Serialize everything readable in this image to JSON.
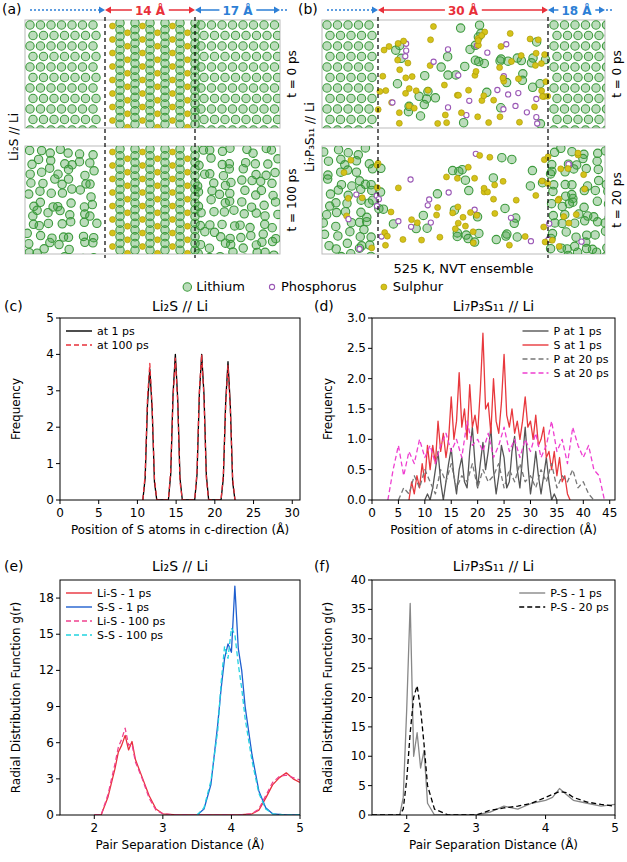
{
  "snapshots": [
    {
      "panel": "(a)",
      "system": "Li₂S // Li",
      "width_center": "14 Å",
      "width_side": "17 Å",
      "frames": [
        "t = 0 ps",
        "t = 100 ps"
      ]
    },
    {
      "panel": "(b)",
      "system": "Li₇P₃S₁₁ // Li",
      "width_center": "30 Å",
      "width_side": "18 Å",
      "frames": [
        "t = 0 ps",
        "t = 20 ps"
      ],
      "conditions": "525 K, NVT ensemble"
    }
  ],
  "species": [
    {
      "name": "Lithium",
      "color": "#3c9a3c"
    },
    {
      "name": "Phosphorus",
      "color": "#9b59b6"
    },
    {
      "name": "Sulphur",
      "color": "#d4c21a"
    }
  ],
  "chart_data": [
    {
      "type": "line",
      "panel": "(c)",
      "title": "Li₂S // Li",
      "xlabel": "Position of S atoms in c-direction (Å)",
      "ylabel": "Frequency",
      "xlim": [
        0,
        31
      ],
      "ylim": [
        0,
        5
      ],
      "xticks": [
        0,
        5,
        10,
        15,
        20,
        25,
        30
      ],
      "yticks": [
        0,
        1,
        2,
        3,
        4,
        5
      ],
      "legend": "upper left",
      "series": [
        {
          "name": "at 1 ps",
          "color": "#000000",
          "line_style": "solid",
          "x": [
            10.7,
            11.0,
            11.3,
            11.6,
            11.9,
            12.2,
            12.5,
            14.0,
            14.3,
            14.6,
            14.9,
            15.2,
            15.5,
            15.8,
            17.4,
            17.7,
            18.0,
            18.3,
            18.6,
            18.9,
            19.2,
            20.8,
            21.1,
            21.4,
            21.7,
            22.0,
            22.3,
            22.6
          ],
          "values": [
            0,
            0.6,
            2.6,
            3.6,
            2.5,
            0.5,
            0,
            0,
            0.7,
            2.9,
            4.0,
            2.8,
            0.6,
            0,
            0,
            0.7,
            2.9,
            4.0,
            2.9,
            0.7,
            0,
            0,
            0.6,
            2.7,
            3.8,
            2.6,
            0.5,
            0
          ]
        },
        {
          "name": "at 100 ps",
          "color": "#e8303a",
          "line_style": "dashed",
          "x": [
            10.7,
            11.0,
            11.3,
            11.6,
            11.9,
            12.2,
            12.5,
            14.0,
            14.3,
            14.6,
            14.9,
            15.2,
            15.5,
            15.8,
            17.4,
            17.7,
            18.0,
            18.3,
            18.6,
            18.9,
            19.2,
            20.8,
            21.1,
            21.4,
            21.7,
            22.0,
            22.3,
            22.6
          ],
          "values": [
            0,
            0.7,
            2.8,
            3.75,
            2.6,
            0.6,
            0,
            0,
            0.8,
            2.8,
            3.9,
            2.7,
            0.5,
            0,
            0,
            0.8,
            3.0,
            4.0,
            2.8,
            0.6,
            0,
            0,
            0.7,
            2.6,
            3.7,
            2.5,
            0.6,
            0
          ]
        }
      ]
    },
    {
      "type": "line",
      "panel": "(d)",
      "title": "Li₇P₃S₁₁ // Li",
      "xlabel": "Position of atoms in c-direction (Å)",
      "ylabel": "Frequency",
      "xlim": [
        0,
        46
      ],
      "ylim": [
        0,
        3
      ],
      "xticks": [
        0,
        5,
        10,
        15,
        20,
        25,
        30,
        35,
        40,
        45
      ],
      "yticks": [
        {
          "value": 0,
          "label": "0.0"
        },
        0.5,
        {
          "value": 1,
          "label": "1.0"
        },
        1.5,
        {
          "value": 2,
          "label": "2.0"
        },
        2.5,
        {
          "value": 3,
          "label": "3.0"
        }
      ],
      "legend": "upper right",
      "series": [
        {
          "name": "P at 1 ps",
          "color": "#555555",
          "line_style": "solid",
          "x": [
            10.0,
            10.5,
            11.0,
            11.5,
            12.0,
            12.5,
            13.0,
            13.5,
            14.0,
            14.5,
            15.0,
            15.5,
            16.0,
            16.5,
            17.0,
            17.5,
            18.0,
            18.5,
            19.0,
            19.5,
            20.0,
            20.5,
            21.0,
            21.5,
            22.0,
            22.5,
            23.0,
            23.5,
            24.0,
            24.5,
            25.0,
            25.5,
            26.0,
            26.5,
            27.0,
            27.5,
            28.0,
            28.5,
            29.0,
            29.5,
            30.0,
            30.5,
            31.0,
            31.5,
            32.0,
            32.5,
            33.0,
            33.5,
            34.0,
            34.5,
            35.0
          ],
          "values": [
            0,
            0.1,
            0,
            0.2,
            0.5,
            0.8,
            0.3,
            0,
            0.3,
            0.6,
            0.85,
            0.4,
            0.1,
            0.5,
            0.7,
            0.3,
            0.2,
            0.8,
            1.2,
            0.6,
            0.2,
            0.6,
            0.95,
            0.5,
            0.8,
            1.2,
            0.5,
            0.1,
            0.4,
            0.9,
            0.7,
            0.2,
            0.3,
            0.8,
            1.05,
            0.5,
            0.2,
            0.7,
            1.2,
            0.6,
            0.1,
            0.4,
            0.8,
            0.4,
            0.1,
            0.4,
            0.7,
            0.3,
            0,
            0.1,
            0
          ]
        },
        {
          "name": "S at 1 ps",
          "color": "#e8383d",
          "line_style": "solid",
          "x": [
            7.0,
            7.5,
            8.0,
            8.5,
            9.0,
            9.5,
            10.0,
            10.5,
            11.0,
            11.5,
            12.0,
            12.5,
            13.0,
            13.5,
            14.0,
            14.5,
            15.0,
            15.5,
            16.0,
            16.5,
            17.0,
            17.5,
            18.0,
            18.5,
            19.0,
            19.5,
            20.0,
            20.5,
            21.0,
            21.5,
            22.0,
            22.5,
            23.0,
            23.5,
            24.0,
            24.5,
            25.0,
            25.5,
            26.0,
            26.5,
            27.0,
            27.5,
            28.0,
            28.5,
            29.0,
            29.5,
            30.0,
            30.5,
            31.0,
            31.5,
            32.0,
            32.5,
            33.0,
            33.5,
            34.0,
            34.5,
            35.0,
            35.5,
            36.0,
            36.5,
            37.0,
            37.5
          ],
          "values": [
            0,
            0.3,
            0.1,
            0.4,
            0.2,
            0.6,
            0.3,
            0.9,
            0.5,
            0.9,
            0.6,
            1.3,
            0.8,
            1.1,
            0.7,
            1.0,
            1.7,
            1.0,
            1.3,
            2.1,
            1.2,
            1.5,
            1.0,
            1.9,
            1.2,
            1.4,
            1.1,
            1.8,
            2.75,
            1.5,
            1.6,
            1.1,
            2.0,
            1.3,
            1.1,
            1.6,
            2.4,
            1.4,
            1.2,
            1.5,
            1.1,
            1.3,
            1.0,
            1.3,
            1.7,
            1.2,
            1.3,
            1.0,
            1.4,
            0.9,
            1.0,
            1.2,
            0.7,
            0.8,
            0.5,
            0.8,
            0.4,
            0.7,
            0.3,
            0.4,
            0.1,
            0
          ]
        },
        {
          "name": "P at 20 ps",
          "color": "#777777",
          "line_style": "dashed",
          "x": [
            5,
            6,
            7,
            8,
            9,
            10,
            11,
            12,
            13,
            14,
            15,
            16,
            17,
            18,
            19,
            20,
            21,
            22,
            23,
            24,
            25,
            26,
            27,
            28,
            29,
            30,
            31,
            32,
            33,
            34,
            35,
            36,
            37,
            38,
            39,
            40,
            41,
            42
          ],
          "values": [
            0,
            0.2,
            0.1,
            0.4,
            0.2,
            0.5,
            0.3,
            0.1,
            0.5,
            0.3,
            0.6,
            0.2,
            0.4,
            0.3,
            0.6,
            0.2,
            0.5,
            0.3,
            0.4,
            0.6,
            0.2,
            0.5,
            0.3,
            0.6,
            0.3,
            0.4,
            0.2,
            0.5,
            0.3,
            0.6,
            0.2,
            0.4,
            0.3,
            0.5,
            0.2,
            0.3,
            0.1,
            0
          ]
        },
        {
          "name": "S at 20 ps",
          "color": "#ee3fd0",
          "line_style": "dashed",
          "x": [
            3,
            4,
            5,
            6,
            7,
            8,
            9,
            10,
            11,
            12,
            13,
            14,
            15,
            16,
            17,
            18,
            19,
            20,
            21,
            22,
            23,
            24,
            25,
            26,
            27,
            28,
            29,
            30,
            31,
            32,
            33,
            34,
            35,
            36,
            37,
            38,
            39,
            40,
            41,
            42,
            43,
            44
          ],
          "values": [
            0,
            0.5,
            0.9,
            0.4,
            0.8,
            0.6,
            1.0,
            0.7,
            0.9,
            0.6,
            0.9,
            1.1,
            0.8,
            1.0,
            0.7,
            1.3,
            0.9,
            1.0,
            0.8,
            1.1,
            0.7,
            0.9,
            1.2,
            0.8,
            1.0,
            0.7,
            1.0,
            0.8,
            1.1,
            0.7,
            0.9,
            1.3,
            0.8,
            1.0,
            0.6,
            1.2,
            0.9,
            0.7,
            0.9,
            0.5,
            0.4,
            0
          ]
        }
      ]
    },
    {
      "type": "line",
      "panel": "(e)",
      "title": "Li₂S // Li",
      "xlabel": "Pair Separation Distance (Å)",
      "ylabel": "Radial Distribution Function g(r)",
      "xlim": [
        1.5,
        5
      ],
      "ylim": [
        0,
        19.5
      ],
      "xticks": [
        2,
        3,
        4,
        5
      ],
      "yticks": [
        0,
        3,
        6,
        9,
        12,
        15,
        18
      ],
      "legend": "upper left",
      "series": [
        {
          "name": "Li-S - 1 ps",
          "color": "#e8303a",
          "line_style": "solid",
          "x": [
            2.0,
            2.1,
            2.2,
            2.3,
            2.35,
            2.4,
            2.45,
            2.5,
            2.55,
            2.6,
            2.7,
            2.8,
            2.9,
            3.0,
            3.2,
            3.5,
            3.8,
            4.1,
            4.3,
            4.4,
            4.5,
            4.6,
            4.7,
            4.8,
            4.9,
            5.0
          ],
          "values": [
            0,
            0,
            1.5,
            3.8,
            5.2,
            5.8,
            6.6,
            5.4,
            6.1,
            4.6,
            3.1,
            1.6,
            0.5,
            0.1,
            0,
            0,
            0,
            0,
            0.1,
            0.4,
            1.4,
            2.5,
            3.1,
            3.5,
            3.0,
            2.7
          ]
        },
        {
          "name": "S-S - 1 ps",
          "color": "#1f5fcf",
          "line_style": "solid",
          "x": [
            3.5,
            3.6,
            3.7,
            3.8,
            3.85,
            3.9,
            3.95,
            4.0,
            4.05,
            4.1,
            4.15,
            4.2,
            4.3,
            4.4,
            4.5,
            4.6,
            4.8,
            5.0
          ],
          "values": [
            0,
            0.5,
            2.5,
            7.5,
            10.5,
            13.0,
            14.2,
            13.5,
            19.0,
            13.8,
            12.0,
            9.0,
            5.0,
            2.0,
            0.6,
            0.1,
            0,
            0
          ]
        },
        {
          "name": "Li-S - 100 ps",
          "color": "#f0418f",
          "line_style": "dashed",
          "x": [
            2.0,
            2.1,
            2.2,
            2.3,
            2.35,
            2.4,
            2.45,
            2.5,
            2.55,
            2.6,
            2.7,
            2.8,
            2.9,
            3.0,
            3.2,
            3.5,
            3.8,
            4.1,
            4.3,
            4.4,
            4.5,
            4.6,
            4.7,
            4.8,
            4.9,
            5.0
          ],
          "values": [
            0,
            0,
            1.7,
            4.2,
            5.6,
            6.3,
            7.2,
            5.8,
            5.9,
            4.4,
            3.0,
            1.4,
            0.4,
            0.1,
            0,
            0,
            0,
            0,
            0.1,
            0.5,
            1.6,
            2.7,
            3.2,
            3.3,
            3.1,
            2.9
          ]
        },
        {
          "name": "S-S - 100 ps",
          "color": "#22d3e0",
          "line_style": "dashed",
          "x": [
            3.5,
            3.6,
            3.7,
            3.8,
            3.85,
            3.9,
            3.95,
            4.0,
            4.05,
            4.1,
            4.15,
            4.2,
            4.3,
            4.4,
            4.5,
            4.6,
            4.8,
            5.0
          ],
          "values": [
            0,
            0.6,
            2.8,
            7.0,
            11.0,
            14.0,
            13.0,
            15.5,
            15.0,
            12.5,
            10.5,
            8.0,
            4.5,
            1.8,
            0.5,
            0.1,
            0,
            0
          ]
        }
      ]
    },
    {
      "type": "line",
      "panel": "(f)",
      "title": "Li₇P₃S₁₁ // Li",
      "xlabel": "Pair Separation Distance (Å)",
      "ylabel": "Radial Distribution Function g(r)",
      "xlim": [
        1.5,
        5
      ],
      "ylim": [
        0,
        40
      ],
      "xticks": [
        2,
        3,
        4,
        5
      ],
      "yticks": [
        0,
        5,
        10,
        15,
        20,
        25,
        30,
        35,
        40
      ],
      "legend": "upper right",
      "series": [
        {
          "name": "P-S - 1 ps",
          "color": "#888888",
          "line_style": "solid",
          "x": [
            1.5,
            1.9,
            1.95,
            2.0,
            2.05,
            2.1,
            2.15,
            2.2,
            2.25,
            2.3,
            2.4,
            2.6,
            3.0,
            3.2,
            3.4,
            3.6,
            3.8,
            4.0,
            4.1,
            4.2,
            4.3,
            4.4,
            4.6,
            4.8,
            5.0
          ],
          "values": [
            0,
            0,
            3,
            18,
            36,
            10,
            14,
            8,
            11,
            2,
            0,
            0,
            0,
            0.5,
            1.5,
            1.0,
            2.0,
            2.5,
            3.0,
            4.5,
            3.5,
            2.5,
            2.0,
            1.5,
            1.8
          ]
        },
        {
          "name": "P-S - 20 ps",
          "color": "#000000",
          "line_style": "dashed",
          "x": [
            1.5,
            1.9,
            1.95,
            2.0,
            2.05,
            2.1,
            2.15,
            2.2,
            2.25,
            2.3,
            2.4,
            2.6,
            3.0,
            3.2,
            3.4,
            3.6,
            3.8,
            4.0,
            4.1,
            4.2,
            4.3,
            4.4,
            4.6,
            4.8,
            5.0
          ],
          "values": [
            0,
            0,
            1,
            6,
            14,
            20,
            22,
            18,
            12,
            5,
            1,
            0,
            0,
            0.8,
            1.2,
            1.5,
            2.0,
            3.0,
            3.5,
            4.0,
            3.8,
            3.0,
            2.2,
            1.8,
            1.5
          ]
        }
      ]
    }
  ]
}
